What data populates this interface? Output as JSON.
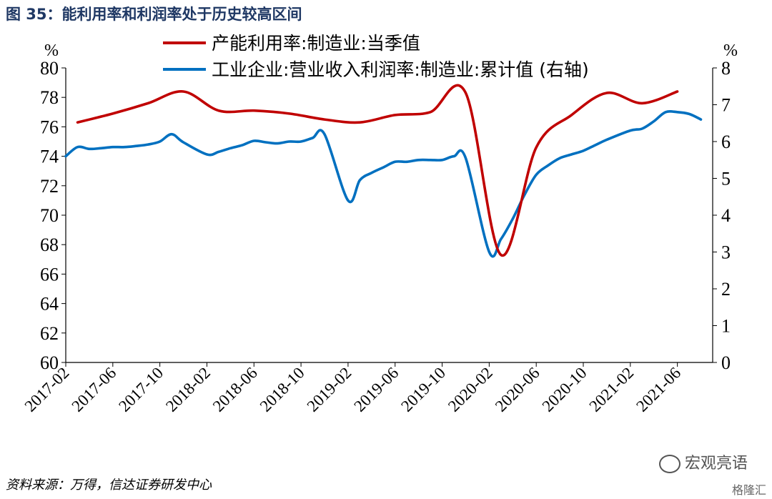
{
  "figure_title": "图 35：能利用率和利润率处于历史较高区间",
  "source": "资料来源：万得，信达证券研发中心",
  "watermark": "宏观亮语",
  "watermark2": "格隆汇",
  "colors": {
    "series1": "#c00000",
    "series2": "#0070c0"
  },
  "chart_data": {
    "type": "line",
    "left_unit": "%",
    "right_unit": "%",
    "y_left": {
      "min": 60,
      "max": 80,
      "step": 2,
      "ticks": [
        "60",
        "62",
        "64",
        "66",
        "68",
        "70",
        "72",
        "74",
        "76",
        "78",
        "80"
      ]
    },
    "y_right": {
      "min": 0,
      "max": 8,
      "step": 1,
      "ticks": [
        "0",
        "1",
        "2",
        "3",
        "4",
        "5",
        "6",
        "7",
        "8"
      ]
    },
    "x_start": "2017-02",
    "x_end": "2021-09",
    "x_ticks": [
      "2017-02",
      "2017-06",
      "2017-10",
      "2018-02",
      "2018-06",
      "2018-10",
      "2019-02",
      "2019-06",
      "2019-10",
      "2020-02",
      "2020-06",
      "2020-10",
      "2021-02",
      "2021-06"
    ],
    "series": [
      {
        "name": "产能利用率:制造业:当季值",
        "axis": "left",
        "color": "#c00000",
        "points": [
          [
            "2017-03",
            76.3
          ],
          [
            "2017-06",
            76.9
          ],
          [
            "2017-09",
            77.6
          ],
          [
            "2017-12",
            78.4
          ],
          [
            "2018-03",
            77.1
          ],
          [
            "2018-06",
            77.1
          ],
          [
            "2018-09",
            76.9
          ],
          [
            "2018-12",
            76.5
          ],
          [
            "2019-03",
            76.3
          ],
          [
            "2019-06",
            76.8
          ],
          [
            "2019-09",
            77.0
          ],
          [
            "2019-12",
            78.3
          ],
          [
            "2020-03",
            67.3
          ],
          [
            "2020-06",
            74.6
          ],
          [
            "2020-09",
            76.8
          ],
          [
            "2020-12",
            78.3
          ],
          [
            "2021-03",
            77.6
          ],
          [
            "2021-06",
            78.4
          ]
        ]
      },
      {
        "name": "工业企业:营业收入利润率:制造业:累计值 (右轴)",
        "axis": "right",
        "color": "#0070c0",
        "points": [
          [
            "2017-02",
            5.6
          ],
          [
            "2017-03",
            5.85
          ],
          [
            "2017-04",
            5.8
          ],
          [
            "2017-05",
            5.82
          ],
          [
            "2017-06",
            5.85
          ],
          [
            "2017-07",
            5.85
          ],
          [
            "2017-08",
            5.88
          ],
          [
            "2017-09",
            5.92
          ],
          [
            "2017-10",
            6.0
          ],
          [
            "2017-11",
            6.2
          ],
          [
            "2017-12",
            5.98
          ],
          [
            "2018-02",
            5.65
          ],
          [
            "2018-03",
            5.72
          ],
          [
            "2018-04",
            5.82
          ],
          [
            "2018-05",
            5.9
          ],
          [
            "2018-06",
            6.02
          ],
          [
            "2018-07",
            5.98
          ],
          [
            "2018-08",
            5.95
          ],
          [
            "2018-09",
            6.0
          ],
          [
            "2018-10",
            6.0
          ],
          [
            "2018-11",
            6.1
          ],
          [
            "2018-12",
            6.2
          ],
          [
            "2019-02",
            4.4
          ],
          [
            "2019-03",
            4.95
          ],
          [
            "2019-04",
            5.15
          ],
          [
            "2019-05",
            5.3
          ],
          [
            "2019-06",
            5.45
          ],
          [
            "2019-07",
            5.45
          ],
          [
            "2019-08",
            5.5
          ],
          [
            "2019-09",
            5.5
          ],
          [
            "2019-10",
            5.5
          ],
          [
            "2019-11",
            5.6
          ],
          [
            "2019-12",
            5.55
          ],
          [
            "2020-02",
            3.0
          ],
          [
            "2020-03",
            3.35
          ],
          [
            "2020-04",
            3.9
          ],
          [
            "2020-05",
            4.55
          ],
          [
            "2020-06",
            5.1
          ],
          [
            "2020-07",
            5.35
          ],
          [
            "2020-08",
            5.55
          ],
          [
            "2020-09",
            5.65
          ],
          [
            "2020-10",
            5.75
          ],
          [
            "2020-11",
            5.9
          ],
          [
            "2020-12",
            6.05
          ],
          [
            "2021-02",
            6.3
          ],
          [
            "2021-03",
            6.35
          ],
          [
            "2021-04",
            6.55
          ],
          [
            "2021-05",
            6.8
          ],
          [
            "2021-06",
            6.8
          ],
          [
            "2021-07",
            6.75
          ],
          [
            "2021-08",
            6.6
          ]
        ]
      }
    ]
  }
}
